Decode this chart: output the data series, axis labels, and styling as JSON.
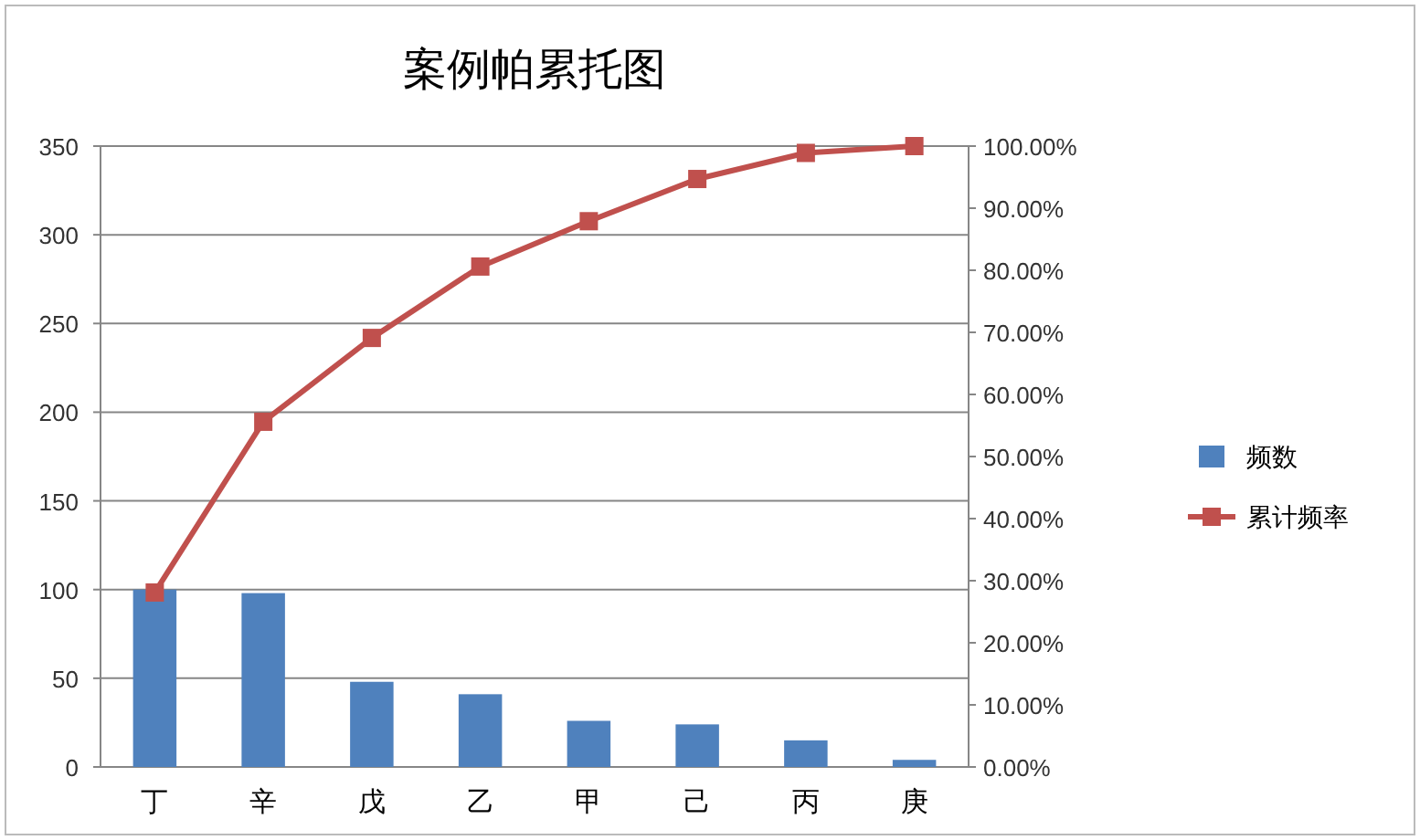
{
  "chart_data": {
    "type": "bar",
    "title": "案例帕累托图",
    "categories": [
      "丁",
      "辛",
      "戊",
      "乙",
      "甲",
      "己",
      "丙",
      "庚"
    ],
    "series": [
      {
        "name": "频数",
        "color": "#4f81bd",
        "values": [
          100,
          98,
          48,
          41,
          26,
          24,
          15,
          4
        ]
      },
      {
        "name": "累计频率",
        "type": "line",
        "axis": "y2",
        "color": "#c0504d",
        "values": [
          28.1,
          55.6,
          69.1,
          80.6,
          87.9,
          94.7,
          98.9,
          100
        ]
      }
    ],
    "ylim": [
      0,
      350
    ],
    "yticks": [
      0,
      50,
      100,
      150,
      200,
      250,
      300,
      350
    ],
    "y2lim": [
      0,
      100
    ],
    "y2ticks": [
      {
        "value": 0,
        "label": "0.00%"
      },
      {
        "value": 10,
        "label": "10.00%"
      },
      {
        "value": 20,
        "label": "20.00%"
      },
      {
        "value": 30,
        "label": "30.00%"
      },
      {
        "value": 40,
        "label": "40.00%"
      },
      {
        "value": 50,
        "label": "50.00%"
      },
      {
        "value": 60,
        "label": "60.00%"
      },
      {
        "value": 70,
        "label": "70.00%"
      },
      {
        "value": 80,
        "label": "80.00%"
      },
      {
        "value": 90,
        "label": "90.00%"
      },
      {
        "value": 100,
        "label": "100.00%"
      }
    ],
    "grid": "y",
    "legend": "right",
    "marker": "square"
  }
}
